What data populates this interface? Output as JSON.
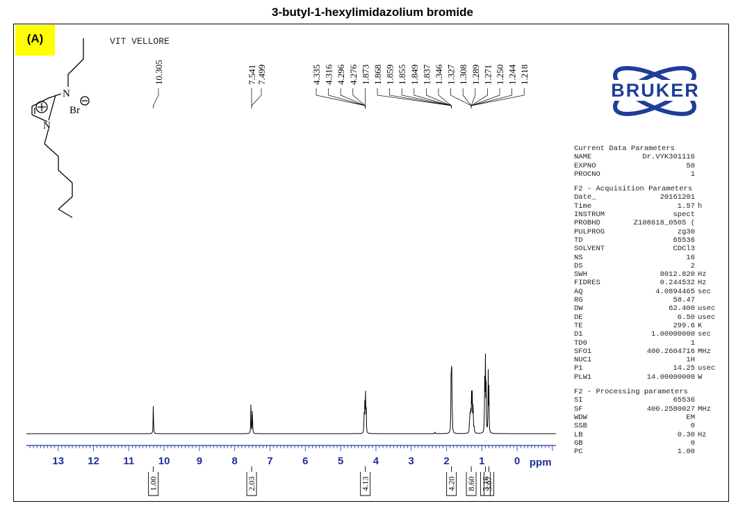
{
  "title": "3-butyl-1-hexylimidazolium bromide",
  "panel_label": "(A)",
  "site_label": "VIT VELLORE",
  "structure": {
    "n1": "N",
    "n3": "N",
    "counter_ion": "Br",
    "minus_sign": "⊖",
    "plus_sign": "⊕"
  },
  "logo_text": "BRUKER",
  "colors": {
    "axis": "#1f2f9c",
    "trace": "#000000",
    "highlight": "#ffff00",
    "logo": "#1f3d99"
  },
  "chart_data": {
    "type": "line",
    "title": "3-butyl-1-hexylimidazolium bromide",
    "xlabel": "ppm",
    "ylabel": "",
    "x_direction": "reversed",
    "xlim": [
      13.9,
      -1.1
    ],
    "xticks": [
      13,
      12,
      11,
      10,
      9,
      8,
      7,
      6,
      5,
      4,
      3,
      2,
      1,
      0
    ],
    "grid": false,
    "peaks": [
      {
        "ppm": 10.305,
        "height": 0.41
      },
      {
        "ppm": 7.541,
        "height": 0.37
      },
      {
        "ppm": 7.499,
        "height": 0.37
      },
      {
        "ppm": 4.335,
        "height": 0.24
      },
      {
        "ppm": 4.316,
        "height": 0.41
      },
      {
        "ppm": 4.296,
        "height": 0.55
      },
      {
        "ppm": 4.276,
        "height": 0.32
      },
      {
        "ppm": 1.873,
        "height": 0.34
      },
      {
        "ppm": 1.868,
        "height": 0.4
      },
      {
        "ppm": 1.859,
        "height": 0.43
      },
      {
        "ppm": 1.855,
        "height": 0.38
      },
      {
        "ppm": 1.849,
        "height": 0.3
      },
      {
        "ppm": 1.837,
        "height": 0.2
      },
      {
        "ppm": 1.346,
        "height": 0.22
      },
      {
        "ppm": 1.327,
        "height": 0.32
      },
      {
        "ppm": 1.308,
        "height": 0.3
      },
      {
        "ppm": 1.289,
        "height": 0.55
      },
      {
        "ppm": 1.271,
        "height": 0.46
      },
      {
        "ppm": 1.25,
        "height": 0.3
      },
      {
        "ppm": 0.92,
        "height": 0.7
      },
      {
        "ppm": 0.9,
        "height": 1.0
      },
      {
        "ppm": 0.88,
        "height": 0.62
      },
      {
        "ppm": 0.82,
        "height": 0.77
      },
      {
        "ppm": 0.8,
        "height": 0.55
      },
      {
        "ppm": 2.33,
        "height": 0.03
      },
      {
        "ppm": 1.244,
        "height": 0.14
      },
      {
        "ppm": 1.218,
        "height": 0.1
      }
    ],
    "peak_labels": [
      "10.305",
      "7.541",
      "7.499",
      "4.335",
      "4.316",
      "4.296",
      "4.276",
      "1.873",
      "1.868",
      "1.859",
      "1.855",
      "1.849",
      "1.837",
      "1.346",
      "1.327",
      "1.308",
      "1.289",
      "1.271",
      "1.250",
      "1.244",
      "1.218"
    ],
    "peak_label_groups": [
      {
        "target_ppm": 10.305,
        "labels": [
          "10.305"
        ]
      },
      {
        "target_ppm": 7.52,
        "labels": [
          "7.541",
          "7.499"
        ]
      },
      {
        "target_ppm": 4.3,
        "labels": [
          "4.335",
          "4.316",
          "4.296",
          "4.276",
          "1.873"
        ]
      },
      {
        "target_ppm": 1.86,
        "labels": [
          "1.868",
          "1.859",
          "1.855",
          "1.849",
          "1.837",
          "1.346"
        ]
      },
      {
        "target_ppm": 1.3,
        "labels": [
          "1.327",
          "1.308",
          "1.289",
          "1.271",
          "1.250",
          "1.244",
          "1.218"
        ]
      }
    ],
    "integrals": [
      {
        "ppm": 10.305,
        "value": "1.00"
      },
      {
        "ppm": 7.52,
        "value": "2.03"
      },
      {
        "ppm": 4.3,
        "value": "4.13"
      },
      {
        "ppm": 1.86,
        "value": "4.20"
      },
      {
        "ppm": 1.3,
        "value": "8.60"
      },
      {
        "ppm": 0.9,
        "value": "3.16"
      },
      {
        "ppm": 0.8,
        "value": "3.07"
      }
    ]
  },
  "parameters": {
    "current_header": "Current Data Parameters",
    "current": [
      {
        "key": "NAME",
        "value": "Dr.VYK301116",
        "unit": ""
      },
      {
        "key": "EXPNO",
        "value": "50",
        "unit": ""
      },
      {
        "key": "PROCNO",
        "value": "1",
        "unit": ""
      }
    ],
    "f2_acq_header": "F2 - Acquisition Parameters",
    "f2_acq": [
      {
        "key": "Date_",
        "value": "20161201",
        "unit": ""
      },
      {
        "key": "Time",
        "value": "1.57",
        "unit": "h"
      },
      {
        "key": "INSTRUM",
        "value": "spect",
        "unit": ""
      },
      {
        "key": "PROBHD",
        "value": "Z108618_0505 (",
        "unit": ""
      },
      {
        "key": "PULPROG",
        "value": "zg30",
        "unit": ""
      },
      {
        "key": "TD",
        "value": "65536",
        "unit": ""
      },
      {
        "key": "SOLVENT",
        "value": "CDCl3",
        "unit": ""
      },
      {
        "key": "NS",
        "value": "16",
        "unit": ""
      },
      {
        "key": "DS",
        "value": "2",
        "unit": ""
      },
      {
        "key": "SWH",
        "value": "8012.820",
        "unit": "Hz"
      },
      {
        "key": "FIDRES",
        "value": "0.244532",
        "unit": "Hz"
      },
      {
        "key": "AQ",
        "value": "4.0894465",
        "unit": "sec"
      },
      {
        "key": "RG",
        "value": "58.47",
        "unit": ""
      },
      {
        "key": "DW",
        "value": "62.400",
        "unit": "usec"
      },
      {
        "key": "DE",
        "value": "6.50",
        "unit": "usec"
      },
      {
        "key": "TE",
        "value": "299.6",
        "unit": "K"
      },
      {
        "key": "D1",
        "value": "1.00000000",
        "unit": "sec"
      },
      {
        "key": "TD0",
        "value": "1",
        "unit": ""
      },
      {
        "key": "SFO1",
        "value": "400.2604716",
        "unit": "MHz"
      },
      {
        "key": "NUC1",
        "value": "1H",
        "unit": ""
      },
      {
        "key": "P1",
        "value": "14.25",
        "unit": "usec"
      },
      {
        "key": "PLW1",
        "value": "14.00000000",
        "unit": "W"
      }
    ],
    "f2_proc_header": "F2 - Processing parameters",
    "f2_proc": [
      {
        "key": "SI",
        "value": "65536",
        "unit": ""
      },
      {
        "key": "SF",
        "value": "400.2580027",
        "unit": "MHz"
      },
      {
        "key": "WDW",
        "value": "EM",
        "unit": ""
      },
      {
        "key": "SSB",
        "value": "0",
        "unit": ""
      },
      {
        "key": "LB",
        "value": "0.30",
        "unit": "Hz"
      },
      {
        "key": "GB",
        "value": "0",
        "unit": ""
      },
      {
        "key": "PC",
        "value": "1.00",
        "unit": ""
      }
    ]
  }
}
